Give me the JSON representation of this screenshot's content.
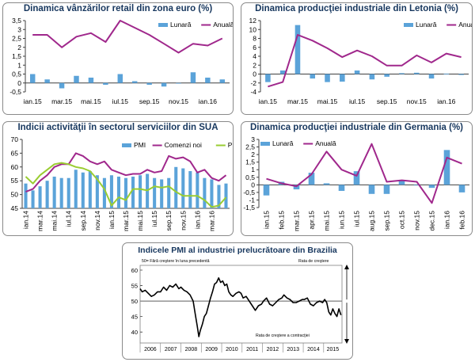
{
  "chart_data": [
    {
      "id": "c1",
      "type": "bar+line",
      "title": "Dinamica vânzărilor retail din zona euro (%)",
      "legend": [
        "Lunară",
        "Anuală"
      ],
      "x_labels": [
        "ian.15",
        "mar.15",
        "mai.15",
        "iul.15",
        "sep.15",
        "nov.15",
        "ian.16"
      ],
      "yticks": [
        "-0,5",
        "0",
        "0,5",
        "1",
        "1,5",
        "2",
        "2,5",
        "3",
        "3,5"
      ],
      "ylim": [
        -0.5,
        3.5
      ],
      "series": [
        {
          "name": "Lunară",
          "type": "bar",
          "values": [
            0.5,
            0.2,
            -0.3,
            0.4,
            0.3,
            -0.1,
            0.5,
            0.1,
            -0.1,
            -0.2,
            0.0,
            0.6,
            0.3,
            0.2
          ]
        },
        {
          "name": "Anuală",
          "type": "line",
          "values": [
            2.7,
            2.7,
            2.0,
            2.6,
            2.8,
            2.3,
            3.5,
            3.1,
            2.7,
            2.2,
            1.7,
            2.2,
            2.1,
            2.5
          ]
        }
      ],
      "colors": {
        "bar": "#5ba3d9",
        "line": "#a0288c"
      }
    },
    {
      "id": "c2",
      "type": "bar+line",
      "title": "Dinamica producţiei industriale din Letonia (%)",
      "legend": [
        "Lunară",
        "Anuală"
      ],
      "x_labels": [
        "ian.15",
        "mar.15",
        "mai.15",
        "iul.15",
        "sep.15",
        "nov.15",
        "ian.16"
      ],
      "yticks": [
        "-4",
        "-2",
        "0",
        "2",
        "4",
        "6",
        "8",
        "10",
        "12"
      ],
      "ylim": [
        -4,
        12
      ],
      "series": [
        {
          "name": "Lunară",
          "type": "bar",
          "values": [
            -1.8,
            0.8,
            11.0,
            -1.0,
            -1.8,
            -1.7,
            0.8,
            -1.2,
            -0.6,
            0.2,
            0.3,
            -1.0,
            0.1,
            -0.2
          ]
        },
        {
          "name": "Anuală",
          "type": "line",
          "values": [
            -2.8,
            -1.8,
            8.8,
            7.5,
            5.8,
            3.8,
            5.3,
            4.0,
            1.9,
            1.9,
            4.2,
            2.6,
            4.6,
            3.8
          ]
        }
      ],
      "colors": {
        "bar": "#5ba3d9",
        "line": "#a0288c"
      }
    },
    {
      "id": "c3",
      "type": "bar+line",
      "title": "Indicii activităţii în sectorul serviciilor din SUA",
      "legend": [
        "PMI",
        "Comenzi noi",
        "Preţuri"
      ],
      "x_labels": [
        "ian.14",
        "mar.14",
        "mai.14",
        "iul.14",
        "sep.14",
        "nov.14",
        "ian.15",
        "mar.15",
        "mai.15",
        "iul.15",
        "sep.15",
        "nov.15",
        "ian.16",
        "mar.16"
      ],
      "yticks": [
        "45",
        "50",
        "55",
        "60",
        "65",
        "70"
      ],
      "ylim": [
        45,
        70
      ],
      "series": [
        {
          "name": "PMI",
          "type": "bar",
          "values": [
            54,
            51.5,
            53,
            55,
            56.5,
            56,
            56,
            59,
            58,
            58.5,
            57,
            56,
            57,
            56.5,
            56,
            56.5,
            57,
            57.5,
            56,
            55.5,
            56,
            60,
            59.5,
            58.5,
            58,
            56,
            55.5,
            53.5,
            54
          ]
        },
        {
          "name": "Comenzi noi",
          "type": "line",
          "values": [
            51,
            52,
            55,
            57,
            60,
            61,
            61,
            65,
            64,
            62,
            61,
            62,
            59,
            58,
            57,
            57.5,
            57.5,
            59,
            58,
            58.5,
            64,
            63,
            63.5,
            62,
            58,
            59,
            56,
            55,
            57
          ]
        },
        {
          "name": "Preţuri",
          "type": "line",
          "values": [
            56.5,
            54,
            57,
            59,
            61,
            61.5,
            61,
            60,
            59.5,
            58.5,
            55.5,
            52,
            46,
            49,
            48,
            52,
            52,
            51.5,
            53,
            52.5,
            53,
            51,
            49.5,
            49.5,
            49.5,
            48,
            45.5,
            46,
            49
          ]
        }
      ],
      "colors": {
        "bar": "#5ba3d9",
        "line1": "#a0288c",
        "line2": "#9acd32"
      }
    },
    {
      "id": "c4",
      "type": "bar+line",
      "title": "Dinamica producţiei industriale din Germania (%)",
      "legend": [
        "Lunară",
        "Anuală"
      ],
      "x_labels": [
        "ian.15",
        "feb.15",
        "mar.15",
        "apr.15",
        "mai.15",
        "iun.15",
        "iul.15",
        "aug.15",
        "sep.15",
        "oct.15",
        "nov.15",
        "dec.15",
        "ian.16",
        "feb.16"
      ],
      "yticks": [
        "-1,5",
        "-1",
        "-0,5",
        "0",
        "0,5",
        "1",
        "1,5",
        "2",
        "2,5",
        "3"
      ],
      "ylim": [
        -1.5,
        3
      ],
      "series": [
        {
          "name": "Lunară",
          "type": "bar",
          "values": [
            -0.7,
            0.2,
            -0.3,
            0.8,
            0.1,
            -0.4,
            0.9,
            -0.6,
            -0.6,
            0.3,
            0.0,
            -0.2,
            2.3,
            -0.5
          ]
        },
        {
          "name": "Anuală",
          "type": "line",
          "values": [
            0.4,
            0.1,
            -0.1,
            0.7,
            2.2,
            1.0,
            0.6,
            2.7,
            0.2,
            0.3,
            0.2,
            -1.2,
            1.8,
            1.4
          ]
        }
      ],
      "colors": {
        "bar": "#5ba3d9",
        "line": "#a0288c"
      }
    },
    {
      "id": "c5",
      "type": "line",
      "title": "Indicele PMI al industriei prelucrătoare din Brazilia",
      "header_title": "Indicele PMI al industriei prelucrătoare din Brazilia",
      "note_left": "50= Fără creştere în luna precedentă",
      "note_up": "Rata de creştere",
      "note_down": "Rata de creştere a contracţiei",
      "x_labels": [
        "2006",
        "2007",
        "2008",
        "2009",
        "2010",
        "2011",
        "2012",
        "2013",
        "2014",
        "2015"
      ],
      "yticks": [
        "40",
        "45",
        "50",
        "55",
        "60"
      ],
      "ylim": [
        38,
        60
      ],
      "baseline": 50,
      "x_range": [
        2006,
        2015.9
      ],
      "series": [
        {
          "name": "PMI",
          "type": "line",
          "points": [
            [
              2006.0,
              54
            ],
            [
              2006.1,
              53
            ],
            [
              2006.25,
              53.5
            ],
            [
              2006.4,
              52.5
            ],
            [
              2006.55,
              51.5
            ],
            [
              2006.7,
              52
            ],
            [
              2006.85,
              53
            ],
            [
              2007.0,
              53
            ],
            [
              2007.15,
              54.5
            ],
            [
              2007.3,
              53.5
            ],
            [
              2007.45,
              55
            ],
            [
              2007.6,
              54.5
            ],
            [
              2007.75,
              55.5
            ],
            [
              2007.9,
              54
            ],
            [
              2008.0,
              54.5
            ],
            [
              2008.15,
              53.5
            ],
            [
              2008.3,
              53
            ],
            [
              2008.45,
              52
            ],
            [
              2008.6,
              50
            ],
            [
              2008.7,
              46
            ],
            [
              2008.8,
              42
            ],
            [
              2008.88,
              38.5
            ],
            [
              2008.95,
              40.5
            ],
            [
              2009.05,
              42.5
            ],
            [
              2009.15,
              45
            ],
            [
              2009.25,
              46
            ],
            [
              2009.35,
              48.5
            ],
            [
              2009.45,
              51
            ],
            [
              2009.55,
              53
            ],
            [
              2009.65,
              55.5
            ],
            [
              2009.75,
              56
            ],
            [
              2009.85,
              57.5
            ],
            [
              2009.95,
              56
            ],
            [
              2010.05,
              56.5
            ],
            [
              2010.15,
              55
            ],
            [
              2010.25,
              55.5
            ],
            [
              2010.35,
              53
            ],
            [
              2010.45,
              52
            ],
            [
              2010.55,
              51.5
            ],
            [
              2010.7,
              52.5
            ],
            [
              2010.85,
              53
            ],
            [
              2010.95,
              52.5
            ],
            [
              2011.05,
              51
            ],
            [
              2011.2,
              51.5
            ],
            [
              2011.35,
              50
            ],
            [
              2011.5,
              48.5
            ],
            [
              2011.65,
              47
            ],
            [
              2011.8,
              48.5
            ],
            [
              2011.95,
              49
            ],
            [
              2012.05,
              50
            ],
            [
              2012.2,
              51
            ],
            [
              2012.35,
              49
            ],
            [
              2012.5,
              48.5
            ],
            [
              2012.65,
              49.5
            ],
            [
              2012.8,
              50.5
            ],
            [
              2012.95,
              51
            ],
            [
              2013.05,
              52
            ],
            [
              2013.2,
              51
            ],
            [
              2013.35,
              50.5
            ],
            [
              2013.5,
              49.5
            ],
            [
              2013.65,
              49.5
            ],
            [
              2013.8,
              50
            ],
            [
              2013.95,
              50.5
            ],
            [
              2014.05,
              50.5
            ],
            [
              2014.2,
              51
            ],
            [
              2014.35,
              49
            ],
            [
              2014.5,
              48.5
            ],
            [
              2014.65,
              49.5
            ],
            [
              2014.8,
              50
            ],
            [
              2014.95,
              49.5
            ],
            [
              2015.05,
              50.5
            ],
            [
              2015.15,
              49.5
            ],
            [
              2015.25,
              46.5
            ],
            [
              2015.35,
              45.5
            ],
            [
              2015.45,
              47.5
            ],
            [
              2015.55,
              46
            ],
            [
              2015.65,
              45
            ],
            [
              2015.75,
              47.5
            ],
            [
              2015.85,
              45.5
            ]
          ]
        }
      ],
      "colors": {
        "line": "#000000",
        "baseline": "#7f7f7f"
      }
    }
  ]
}
